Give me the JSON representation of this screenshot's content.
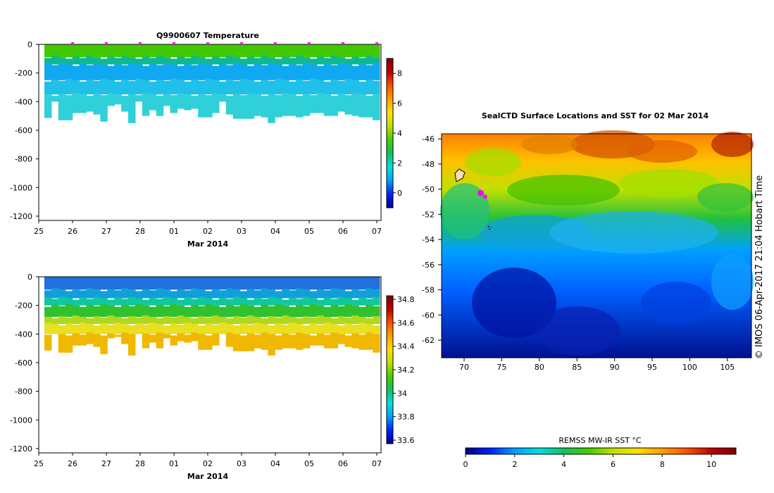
{
  "chart_data": [
    {
      "type": "heatmap",
      "title": "Q9900607  Temperature",
      "xlabel": "Mar 2014",
      "x_ticks": [
        "25",
        "26",
        "27",
        "28",
        "01",
        "02",
        "03",
        "04",
        "05",
        "06",
        "07"
      ],
      "y_ticks": [
        0,
        -200,
        -400,
        -600,
        -800,
        -1000,
        -1200
      ],
      "ylim": [
        -1230,
        0
      ],
      "profile_marks_day_offsets": [
        1,
        2,
        3,
        4,
        5,
        6,
        7,
        8,
        9,
        10
      ],
      "depth_limits": [
        -515,
        -400,
        -530,
        -530,
        -480,
        -480,
        -470,
        -490,
        -540,
        -430,
        -420,
        -470,
        -550,
        -400,
        -500,
        -460,
        -500,
        -430,
        -480,
        -450,
        -460,
        -450,
        -510,
        -510,
        -480,
        -400,
        -490,
        -520,
        -520,
        -520,
        -500,
        -510,
        -550,
        -510,
        -500,
        -500,
        -510,
        -500,
        -480,
        -480,
        -500,
        -500,
        -470,
        -490,
        -500,
        -510,
        -510,
        -530
      ],
      "colorbar": {
        "min": -1,
        "max": 9,
        "ticks": [
          0,
          2,
          4,
          6,
          8
        ]
      },
      "palette": [
        "#00008a",
        "#0020ff",
        "#00a0ff",
        "#00e0e0",
        "#10c060",
        "#40d000",
        "#c0e000",
        "#ffe000",
        "#ffa000",
        "#ff5000",
        "#c00000",
        "#800000"
      ]
    },
    {
      "type": "heatmap",
      "title": "",
      "xlabel": "Mar 2014",
      "x_ticks": [
        "25",
        "26",
        "27",
        "28",
        "01",
        "02",
        "03",
        "04",
        "05",
        "06",
        "07"
      ],
      "y_ticks": [
        0,
        -200,
        -400,
        -600,
        -800,
        -1000,
        -1200
      ],
      "ylim": [
        -1230,
        0
      ],
      "colorbar": {
        "min": 33.57,
        "max": 34.83,
        "ticks": [
          33.6,
          33.8,
          34,
          34.2,
          34.4,
          34.6,
          34.8
        ],
        "tick_labels": [
          "33.6",
          "33.8",
          "34",
          "34.2",
          "34.4",
          "34.6",
          "34.8"
        ]
      }
    },
    {
      "type": "heatmap",
      "title": "SealCTD Surface Locations and SST for 02 Mar 2014",
      "x_ticks": [
        70,
        75,
        80,
        85,
        90,
        95,
        100,
        105
      ],
      "y_ticks": [
        -46,
        -48,
        -50,
        -52,
        -54,
        -56,
        -58,
        -60,
        -62
      ],
      "xlim": [
        67,
        108.2
      ],
      "ylim": [
        -63.4,
        -45.6
      ],
      "colorbar": {
        "label": "REMSS MW-IR SST °C",
        "min": 0,
        "max": 11,
        "ticks": [
          0,
          2,
          4,
          6,
          8,
          10
        ]
      },
      "markers": [
        {
          "lon": 72.2,
          "lat": -50.3,
          "color": "#ff00ff"
        },
        {
          "lon": 72.8,
          "lat": -50.6,
          "color": "#ff00ff"
        }
      ]
    }
  ],
  "side_text": "©  IMOS 06-Apr-2017 21:04 Hobart Time"
}
